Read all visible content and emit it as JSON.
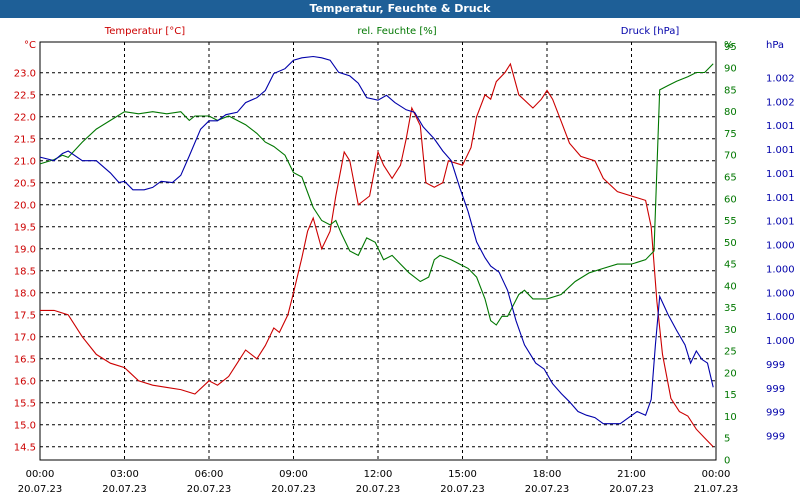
{
  "window": {
    "title": "Temperatur, Feuchte & Druck"
  },
  "colors": {
    "temperature": "#cc0000",
    "humidity": "#007700",
    "pressure": "#0000aa",
    "grid": "#000000",
    "titlebar": "#1e5f97"
  },
  "chart_data": {
    "type": "line",
    "title": "Temperatur, Feuchte & Druck",
    "grid": true,
    "legend": "top",
    "x_ticks": [
      {
        "time": "00:00",
        "date": "20.07.23"
      },
      {
        "time": "03:00",
        "date": "20.07.23"
      },
      {
        "time": "06:00",
        "date": "20.07.23"
      },
      {
        "time": "09:00",
        "date": "20.07.23"
      },
      {
        "time": "12:00",
        "date": "20.07.23"
      },
      {
        "time": "15:00",
        "date": "20.07.23"
      },
      {
        "time": "18:00",
        "date": "20.07.23"
      },
      {
        "time": "21:00",
        "date": "20.07.23"
      },
      {
        "time": "00:00",
        "date": "21.07.23"
      }
    ],
    "x_range_hours": [
      0,
      24
    ],
    "axes": {
      "temperature": {
        "unit": "°C",
        "ylim": [
          14.2,
          23.7
        ],
        "ticks": [
          "14.5",
          "15.0",
          "15.5",
          "16.0",
          "16.5",
          "17.0",
          "17.5",
          "18.0",
          "18.5",
          "19.0",
          "19.5",
          "20.0",
          "20.5",
          "21.0",
          "21.5",
          "22.0",
          "22.5",
          "23.0"
        ]
      },
      "humidity": {
        "unit": "%",
        "ylim": [
          0,
          96
        ],
        "ticks": [
          "0",
          "5",
          "10",
          "15",
          "20",
          "25",
          "30",
          "35",
          "40",
          "45",
          "50",
          "55",
          "60",
          "65",
          "70",
          "75",
          "80",
          "85",
          "90",
          "95"
        ]
      },
      "pressure": {
        "unit": "hPa",
        "ylim": [
          998.75,
          1002.2
        ],
        "ticks": [
          "999",
          "999",
          "999",
          "999",
          "1.000",
          "1.000",
          "1.000",
          "1.000",
          "1.000",
          "1.001",
          "1.001",
          "1.001",
          "1.001",
          "1.001",
          "1.002",
          "1.002"
        ]
      }
    },
    "series": [
      {
        "name": "Temperatur [°C]",
        "axis": "temperature",
        "points": [
          [
            0,
            17.6
          ],
          [
            0.5,
            17.6
          ],
          [
            1,
            17.5
          ],
          [
            1.5,
            17.0
          ],
          [
            2,
            16.6
          ],
          [
            2.5,
            16.4
          ],
          [
            3,
            16.3
          ],
          [
            3.5,
            16.0
          ],
          [
            4,
            15.9
          ],
          [
            4.5,
            15.85
          ],
          [
            5,
            15.8
          ],
          [
            5.5,
            15.7
          ],
          [
            6,
            16.0
          ],
          [
            6.3,
            15.9
          ],
          [
            6.7,
            16.1
          ],
          [
            7,
            16.4
          ],
          [
            7.3,
            16.7
          ],
          [
            7.7,
            16.5
          ],
          [
            8,
            16.8
          ],
          [
            8.3,
            17.2
          ],
          [
            8.5,
            17.1
          ],
          [
            8.8,
            17.5
          ],
          [
            9,
            18.0
          ],
          [
            9.3,
            18.8
          ],
          [
            9.5,
            19.4
          ],
          [
            9.7,
            19.7
          ],
          [
            10,
            19.0
          ],
          [
            10.3,
            19.4
          ],
          [
            10.5,
            20.2
          ],
          [
            10.8,
            21.2
          ],
          [
            11,
            21.0
          ],
          [
            11.3,
            20.0
          ],
          [
            11.7,
            20.2
          ],
          [
            12,
            21.2
          ],
          [
            12.2,
            20.9
          ],
          [
            12.5,
            20.6
          ],
          [
            12.8,
            20.9
          ],
          [
            13,
            21.5
          ],
          [
            13.2,
            22.2
          ],
          [
            13.5,
            21.8
          ],
          [
            13.7,
            20.5
          ],
          [
            14,
            20.4
          ],
          [
            14.3,
            20.5
          ],
          [
            14.5,
            21.0
          ],
          [
            15,
            20.9
          ],
          [
            15.3,
            21.3
          ],
          [
            15.5,
            22.0
          ],
          [
            15.8,
            22.5
          ],
          [
            16,
            22.4
          ],
          [
            16.2,
            22.8
          ],
          [
            16.5,
            23.0
          ],
          [
            16.7,
            23.2
          ],
          [
            17,
            22.5
          ],
          [
            17.5,
            22.2
          ],
          [
            17.8,
            22.4
          ],
          [
            18,
            22.6
          ],
          [
            18.2,
            22.4
          ],
          [
            18.5,
            21.9
          ],
          [
            18.8,
            21.4
          ],
          [
            19.2,
            21.1
          ],
          [
            19.7,
            21.0
          ],
          [
            20,
            20.6
          ],
          [
            20.5,
            20.3
          ],
          [
            21,
            20.2
          ],
          [
            21.5,
            20.1
          ],
          [
            21.7,
            19.5
          ],
          [
            21.9,
            17.8
          ],
          [
            22.1,
            16.6
          ],
          [
            22.4,
            15.6
          ],
          [
            22.7,
            15.3
          ],
          [
            23,
            15.2
          ],
          [
            23.3,
            14.9
          ],
          [
            23.6,
            14.7
          ],
          [
            23.9,
            14.5
          ]
        ]
      },
      {
        "name": "rel. Feuchte [%]",
        "axis": "humidity",
        "points": [
          [
            0,
            68
          ],
          [
            0.5,
            69
          ],
          [
            0.8,
            70
          ],
          [
            1,
            69.5
          ],
          [
            1.5,
            73
          ],
          [
            2,
            76
          ],
          [
            2.5,
            78
          ],
          [
            3,
            80
          ],
          [
            3.5,
            79.5
          ],
          [
            4,
            80
          ],
          [
            4.5,
            79.5
          ],
          [
            5,
            80
          ],
          [
            5.3,
            78
          ],
          [
            5.5,
            79
          ],
          [
            6,
            79
          ],
          [
            6.3,
            78
          ],
          [
            6.7,
            79
          ],
          [
            7,
            78
          ],
          [
            7.3,
            77
          ],
          [
            7.7,
            75
          ],
          [
            8,
            73
          ],
          [
            8.3,
            72
          ],
          [
            8.7,
            70
          ],
          [
            9,
            66
          ],
          [
            9.3,
            65
          ],
          [
            9.7,
            58
          ],
          [
            10,
            55
          ],
          [
            10.3,
            54
          ],
          [
            10.5,
            55
          ],
          [
            10.7,
            52
          ],
          [
            11,
            48
          ],
          [
            11.3,
            47
          ],
          [
            11.6,
            51
          ],
          [
            11.9,
            50
          ],
          [
            12.2,
            46
          ],
          [
            12.5,
            47
          ],
          [
            12.8,
            45
          ],
          [
            13.1,
            43
          ],
          [
            13.5,
            41
          ],
          [
            13.8,
            42
          ],
          [
            14,
            46
          ],
          [
            14.2,
            47
          ],
          [
            14.6,
            46
          ],
          [
            14.9,
            45
          ],
          [
            15.2,
            44
          ],
          [
            15.5,
            42
          ],
          [
            15.8,
            37
          ],
          [
            16,
            32
          ],
          [
            16.2,
            31
          ],
          [
            16.4,
            33
          ],
          [
            16.6,
            33
          ],
          [
            17,
            38
          ],
          [
            17.2,
            39
          ],
          [
            17.5,
            37
          ],
          [
            18,
            37
          ],
          [
            18.5,
            38
          ],
          [
            19,
            41
          ],
          [
            19.5,
            43
          ],
          [
            20,
            44
          ],
          [
            20.5,
            45
          ],
          [
            21,
            45
          ],
          [
            21.5,
            46
          ],
          [
            21.8,
            48
          ],
          [
            22,
            85
          ],
          [
            22.3,
            86
          ],
          [
            22.6,
            87
          ],
          [
            23,
            88
          ],
          [
            23.3,
            89
          ],
          [
            23.6,
            89
          ],
          [
            23.9,
            91
          ]
        ]
      },
      {
        "name": "Druck [hPa]",
        "axis": "pressure",
        "points": [
          [
            0,
            1001.25
          ],
          [
            0.5,
            1001.22
          ],
          [
            0.8,
            1001.28
          ],
          [
            1,
            1001.3
          ],
          [
            1.5,
            1001.22
          ],
          [
            2,
            1001.22
          ],
          [
            2.5,
            1001.12
          ],
          [
            2.8,
            1001.04
          ],
          [
            3,
            1001.05
          ],
          [
            3.3,
            1000.98
          ],
          [
            3.7,
            1000.98
          ],
          [
            4,
            1001.0
          ],
          [
            4.3,
            1001.05
          ],
          [
            4.7,
            1001.04
          ],
          [
            5,
            1001.1
          ],
          [
            5.3,
            1001.26
          ],
          [
            5.7,
            1001.48
          ],
          [
            6,
            1001.55
          ],
          [
            6.3,
            1001.55
          ],
          [
            6.6,
            1001.6
          ],
          [
            7,
            1001.62
          ],
          [
            7.3,
            1001.7
          ],
          [
            7.7,
            1001.74
          ],
          [
            8,
            1001.8
          ],
          [
            8.3,
            1001.94
          ],
          [
            8.7,
            1001.98
          ],
          [
            9,
            1002.05
          ],
          [
            9.3,
            1002.07
          ],
          [
            9.7,
            1002.08
          ],
          [
            10,
            1002.07
          ],
          [
            10.3,
            1002.05
          ],
          [
            10.6,
            1001.95
          ],
          [
            11,
            1001.92
          ],
          [
            11.3,
            1001.86
          ],
          [
            11.6,
            1001.74
          ],
          [
            12,
            1001.72
          ],
          [
            12.3,
            1001.76
          ],
          [
            12.6,
            1001.7
          ],
          [
            13,
            1001.64
          ],
          [
            13.3,
            1001.62
          ],
          [
            13.6,
            1001.5
          ],
          [
            14,
            1001.4
          ],
          [
            14.3,
            1001.3
          ],
          [
            14.6,
            1001.22
          ],
          [
            14.9,
            1001.0
          ],
          [
            15.2,
            1000.8
          ],
          [
            15.5,
            1000.55
          ],
          [
            15.8,
            1000.42
          ],
          [
            16,
            1000.35
          ],
          [
            16.3,
            1000.3
          ],
          [
            16.6,
            1000.15
          ],
          [
            16.9,
            999.9
          ],
          [
            17.2,
            999.7
          ],
          [
            17.6,
            999.55
          ],
          [
            17.9,
            999.5
          ],
          [
            18.2,
            999.38
          ],
          [
            18.5,
            999.3
          ],
          [
            18.8,
            999.23
          ],
          [
            19.1,
            999.15
          ],
          [
            19.4,
            999.12
          ],
          [
            19.7,
            999.1
          ],
          [
            20,
            999.05
          ],
          [
            20.3,
            999.05
          ],
          [
            20.6,
            999.05
          ],
          [
            20.9,
            999.1
          ],
          [
            21.2,
            999.15
          ],
          [
            21.5,
            999.12
          ],
          [
            21.7,
            999.25
          ],
          [
            21.85,
            999.7
          ],
          [
            22.0,
            1000.1
          ],
          [
            22.3,
            999.95
          ],
          [
            22.6,
            999.82
          ],
          [
            22.9,
            999.7
          ],
          [
            23.1,
            999.55
          ],
          [
            23.3,
            999.65
          ],
          [
            23.5,
            999.58
          ],
          [
            23.7,
            999.55
          ],
          [
            23.9,
            999.35
          ]
        ]
      }
    ]
  }
}
